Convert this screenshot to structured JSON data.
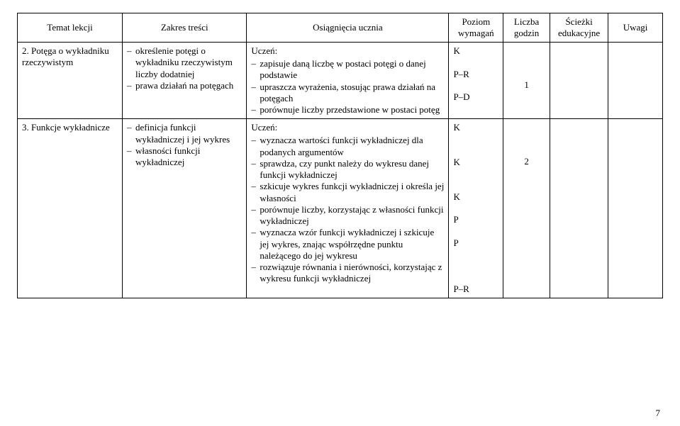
{
  "headers": {
    "col1": "Temat lekcji",
    "col2": "Zakres treści",
    "col3": "Osiągnięcia ucznia",
    "col4": "Poziom wymagań",
    "col5": "Liczba godzin",
    "col6": "Ścieżki edukacyjne",
    "col7": "Uwagi"
  },
  "rows": [
    {
      "topic": "2. Potęga o wykładniku rzeczywistym",
      "scope": [
        "określenie potęgi o wykładniku rzeczywistym liczby dodatniej",
        "prawa działań na potęgach"
      ],
      "ach_lead": "Uczeń:",
      "ach": [
        "zapisuje daną liczbę w postaci potęgi o danej podstawie",
        "upraszcza wyrażenia, stosując prawa działań na potęgach",
        "porównuje liczby przedstawione w postaci potęg"
      ],
      "levels": [
        "K",
        "P–R",
        "P–D"
      ],
      "level_gaps": [
        1,
        2,
        2
      ],
      "hours": "1"
    },
    {
      "topic": "3. Funkcje wykładnicze",
      "scope": [
        "definicja funkcji wykładniczej i jej wykres",
        "własności funkcji wykładniczej"
      ],
      "ach_lead": "Uczeń:",
      "ach": [
        "wyznacza wartości funkcji wykładniczej dla podanych argumentów",
        "sprawdza, czy punkt należy do wykresu danej funkcji wykładniczej",
        "szkicuje wykres funkcji wykładniczej i określa jej własności",
        "porównuje liczby, korzystając z własności funkcji wykładniczej",
        "wyznacza wzór funkcji wykładniczej i szkicuje jej wykres, znając współrzędne punktu należącego do jej wykresu",
        "rozwiązuje równania i nierówności, korzystając z wykresu funkcji wykładniczej"
      ],
      "levels": [
        "K",
        "K",
        "K",
        "P",
        "P",
        "P–R"
      ],
      "level_gaps": [
        1,
        3,
        3,
        2,
        2,
        4
      ],
      "hours": "2"
    }
  ],
  "page_number": "7"
}
